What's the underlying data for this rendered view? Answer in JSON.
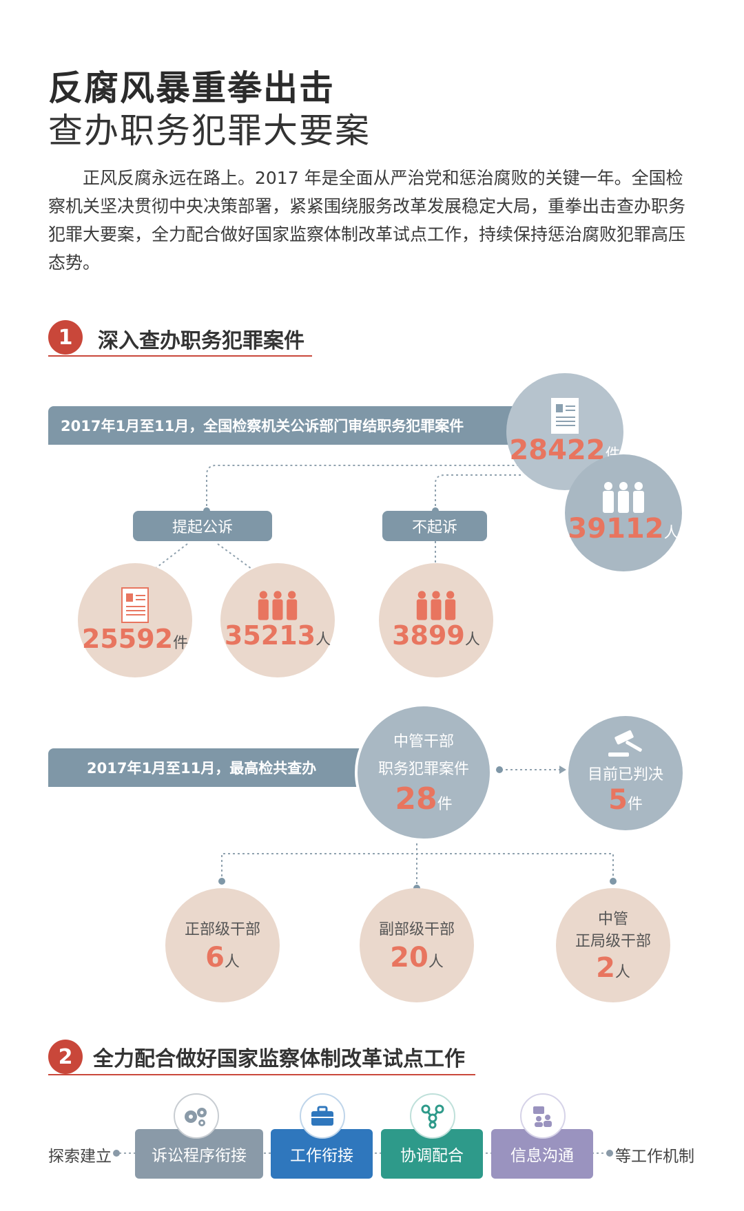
{
  "header": {
    "title_line1": "反腐风暴重拳出击",
    "title_line2": "查办职务犯罪大要案"
  },
  "intro": "正风反腐永远在路上。2017 年是全面从严治党和惩治腐败的关键一年。全国检察机关坚决贯彻中央决策部署，紧紧围绕服务改革发展稳定大局，重拳出击查办职务犯罪大要案，全力配合做好国家监察体制改革试点工作，持续保持惩治腐败犯罪高压态势。",
  "section1": {
    "number": "1",
    "title": "深入查办职务犯罪案件",
    "banner": "2017年1月至11月，全国检察机关公诉部门审结职务犯罪案件",
    "total_cases": {
      "value": "28422",
      "unit": "件"
    },
    "total_people": {
      "value": "39112",
      "unit": "人"
    },
    "prosecuted": {
      "label": "提起公诉",
      "cases": {
        "value": "25592",
        "unit": "件"
      },
      "people": {
        "value": "35213",
        "unit": "人"
      }
    },
    "not_prosecuted": {
      "label": "不起诉",
      "people": {
        "value": "3899",
        "unit": "人"
      }
    },
    "banner2": "2017年1月至11月，最高检共查办",
    "central": {
      "line1": "中管干部",
      "line2": "职务犯罪案件",
      "value": "28",
      "unit": "件"
    },
    "judged": {
      "label": "目前已判决",
      "value": "5",
      "unit": "件"
    },
    "ranks": [
      {
        "label": "正部级干部",
        "value": "6",
        "unit": "人"
      },
      {
        "label": "副部级干部",
        "value": "20",
        "unit": "人"
      },
      {
        "label_line1": "中管",
        "label_line2": "正局级干部",
        "value": "2",
        "unit": "人"
      }
    ]
  },
  "section2": {
    "number": "2",
    "title": "全力配合做好国家监察体制改革试点工作",
    "prefix": "探索建立",
    "suffix": "等工作机制",
    "items": [
      {
        "label": "诉讼程序衔接",
        "color": "#8a9aa8"
      },
      {
        "label": "工作衔接",
        "color": "#2f77bd"
      },
      {
        "label": "协调配合",
        "color": "#2e9a8a"
      },
      {
        "label": "信息沟通",
        "color": "#9a93bf"
      }
    ]
  }
}
